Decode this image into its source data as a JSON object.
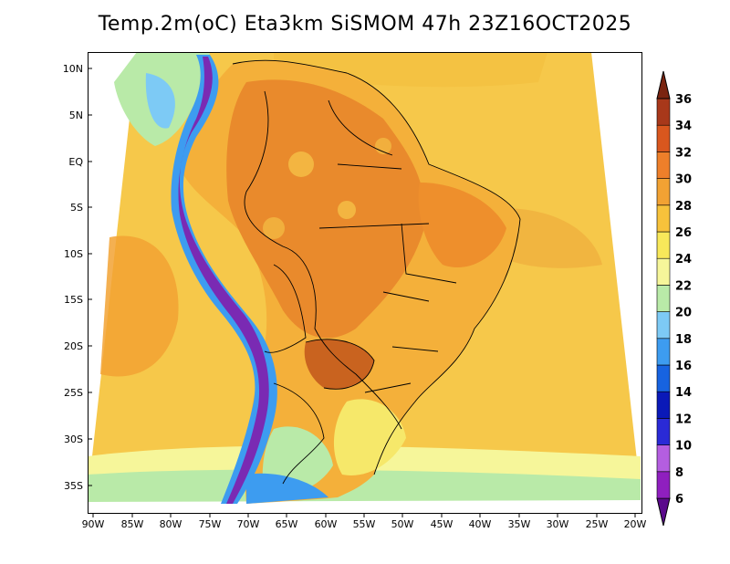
{
  "title": "Temp.2m(oC) Eta3km SiSMOM 47h 23Z16OCT2025",
  "lat_labels": [
    "10N",
    "5N",
    "EQ",
    "5S",
    "10S",
    "15S",
    "20S",
    "25S",
    "30S",
    "35S"
  ],
  "lon_labels": [
    "90W",
    "85W",
    "80W",
    "75W",
    "70W",
    "65W",
    "60W",
    "55W",
    "50W",
    "45W",
    "40W",
    "35W",
    "30W",
    "25W",
    "20W"
  ],
  "colorbar": {
    "labels": [
      "6",
      "8",
      "10",
      "12",
      "14",
      "16",
      "18",
      "20",
      "22",
      "24",
      "26",
      "28",
      "30",
      "32",
      "34",
      "36"
    ],
    "colors": [
      "#5b0a8c",
      "#8f1fbf",
      "#b45ee0",
      "#2a2ad6",
      "#0a19b8",
      "#1763e0",
      "#3d9cf0",
      "#7dcaf5",
      "#b9eaa8",
      "#f6f69a",
      "#f8e85a",
      "#f7c23b",
      "#f2a233",
      "#ee7f2a",
      "#d9571e",
      "#a8381a",
      "#7a2410"
    ]
  },
  "colors": {
    "ocean_main": "#f6c84a",
    "ocean_warm": "#f2a233",
    "land_hot": "#e98a2c",
    "land_warm": "#f4b03a",
    "andes_cold": "#6e2ca8",
    "andes_mid": "#2a7ae0",
    "southern_cool": "#b9eaa8",
    "frame": "#000000"
  }
}
